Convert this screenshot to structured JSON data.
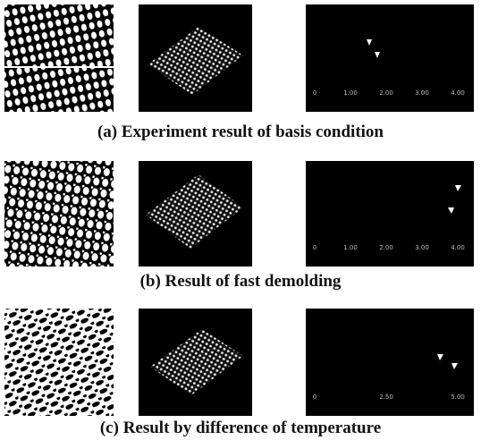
{
  "panels": [
    {
      "caption": "(a) Experiment result of basis condition",
      "profile_ticks": [
        "0",
        "1.00",
        "2.00",
        "3.00",
        "4.00"
      ]
    },
    {
      "caption": "(b) Result of fast demolding",
      "profile_ticks": [
        "0",
        "1.00",
        "2.00",
        "3.00",
        "4.00"
      ]
    },
    {
      "caption": "(c) Result by difference of temperature",
      "profile_ticks": [
        "0",
        "2.50",
        "5.00"
      ]
    }
  ]
}
